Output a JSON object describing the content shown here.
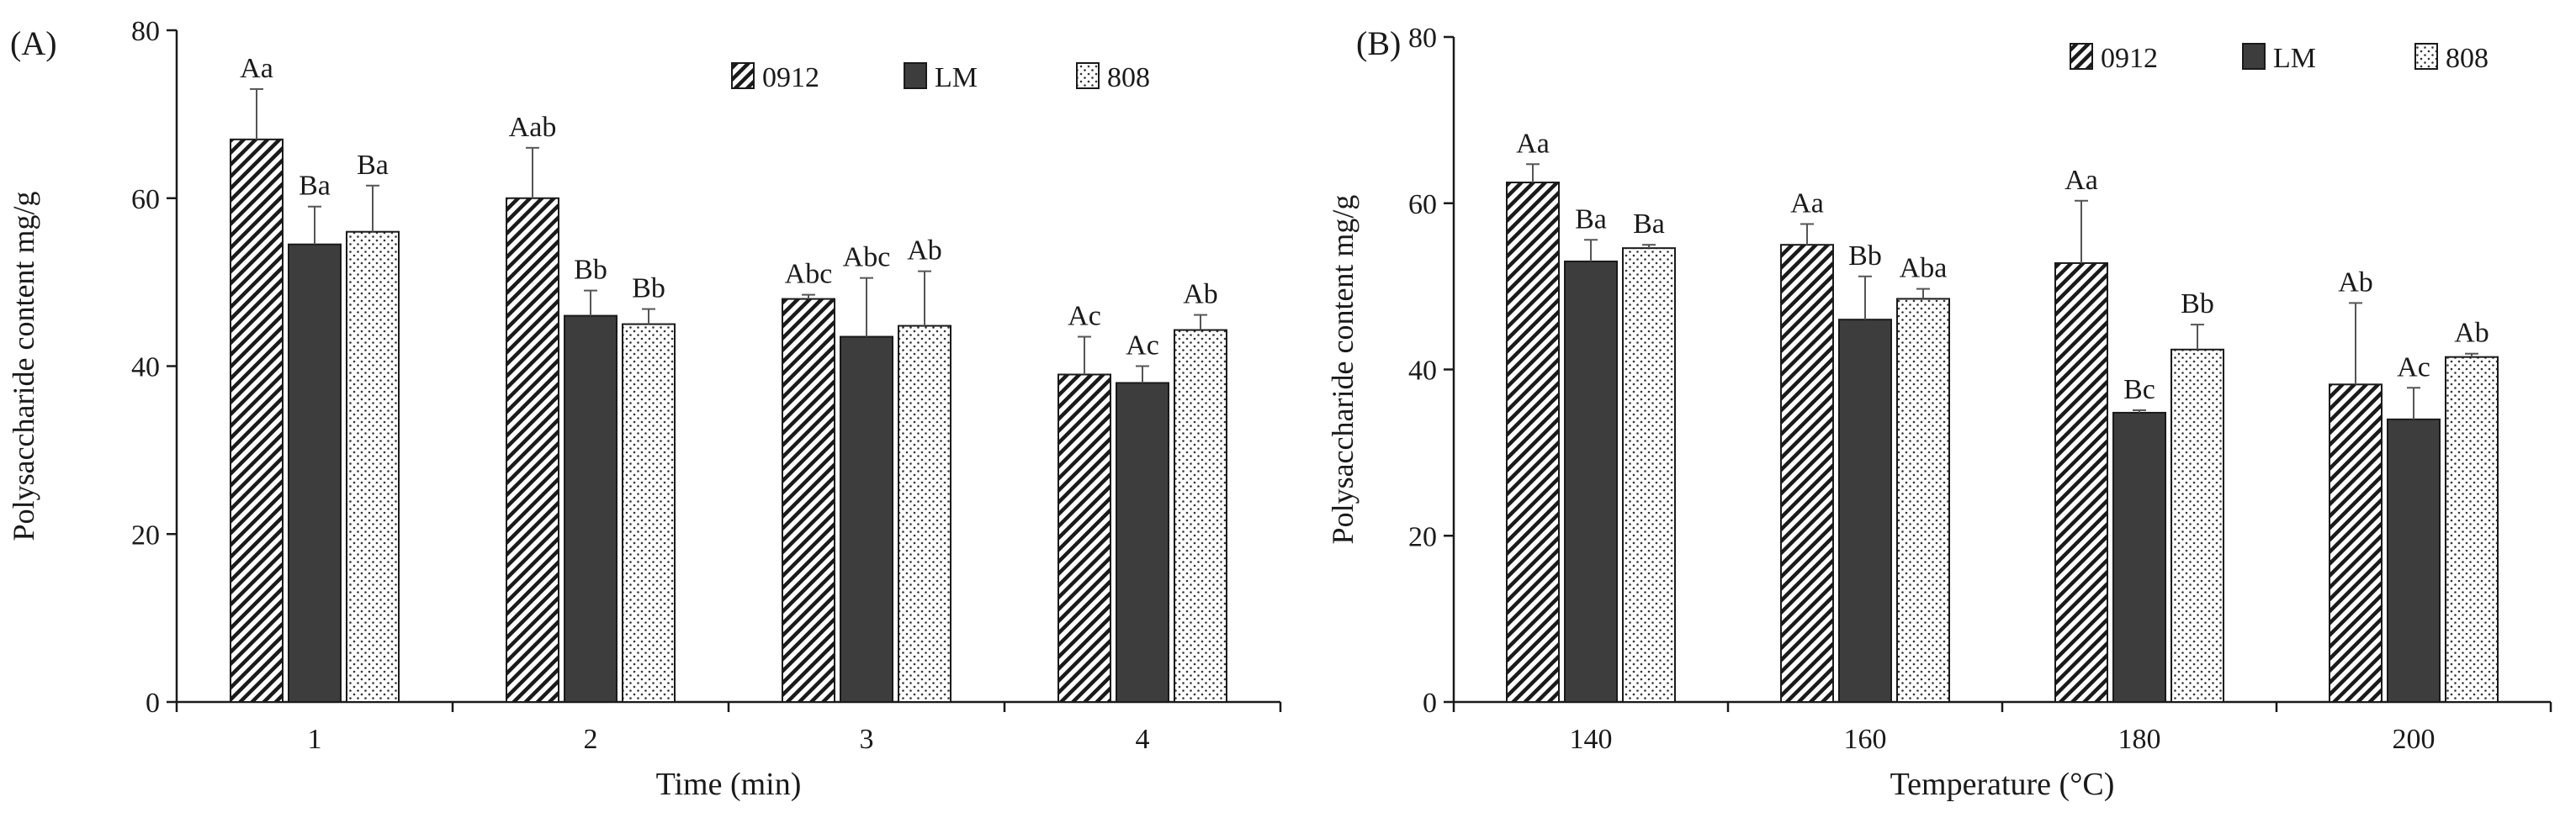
{
  "colors": {
    "axis": "#1a1a1a",
    "lm_fill": "#3d3d3d",
    "hatch": "#1a1a1a",
    "dots": "#333333",
    "background": "#ffffff"
  },
  "legend_icons": [
    "diagonal-hatch-swatch",
    "dark-solid-swatch",
    "dotted-swatch"
  ],
  "chart_data": [
    {
      "type": "bar",
      "panel_label": "(A)",
      "xlabel": "Time (min)",
      "ylabel": "Polysaccharide content mg/g",
      "categories": [
        "1",
        "2",
        "3",
        "4"
      ],
      "ylim": [
        0,
        80
      ],
      "yticks": [
        "0",
        "20",
        "40",
        "60",
        "80"
      ],
      "legend": [
        "0912",
        "LM",
        "808"
      ],
      "legend_position": "top-right",
      "series": [
        {
          "name": "0912",
          "pattern": "hatch",
          "values": [
            67,
            60,
            48,
            39
          ],
          "errors": [
            6,
            6,
            0.5,
            4.5
          ],
          "labels": [
            "Aa",
            "Aab",
            "Abc",
            "Ac"
          ]
        },
        {
          "name": "LM",
          "pattern": "solid",
          "values": [
            54.5,
            46,
            43.5,
            38
          ],
          "errors": [
            4.5,
            3,
            7,
            2
          ],
          "labels": [
            "Ba",
            "Bb",
            "Abc",
            "Ac"
          ]
        },
        {
          "name": "808",
          "pattern": "dots",
          "values": [
            56,
            45,
            44.8,
            44.3
          ],
          "errors": [
            5.5,
            1.8,
            6.5,
            1.8
          ],
          "labels": [
            "Ba",
            "Bb",
            "Ab",
            "Ab"
          ]
        }
      ]
    },
    {
      "type": "bar",
      "panel_label": "(B)",
      "xlabel": "Temperature (°C)",
      "ylabel": "Polysaccharide content mg/g",
      "categories": [
        "140",
        "160",
        "180",
        "200"
      ],
      "ylim": [
        0,
        80
      ],
      "yticks": [
        "0",
        "20",
        "40",
        "60",
        "80"
      ],
      "legend": [
        "0912",
        "LM",
        "808"
      ],
      "legend_position": "top-right",
      "series": [
        {
          "name": "0912",
          "pattern": "hatch",
          "values": [
            62.5,
            55,
            52.8,
            38.2
          ],
          "errors": [
            2.2,
            2.5,
            7.5,
            9.8
          ],
          "labels": [
            "Aa",
            "Aa",
            "Aa",
            "Ab"
          ]
        },
        {
          "name": "LM",
          "pattern": "solid",
          "values": [
            53,
            46,
            34.8,
            34
          ],
          "errors": [
            2.6,
            5.2,
            0.3,
            3.8
          ],
          "labels": [
            "Ba",
            "Bb",
            "Bc",
            "Ac"
          ]
        },
        {
          "name": "808",
          "pattern": "dots",
          "values": [
            54.6,
            48.5,
            42.4,
            41.5
          ],
          "errors": [
            0.4,
            1.2,
            3,
            0.4
          ],
          "labels": [
            "Ba",
            "Aba",
            "Bb",
            "Ab"
          ]
        }
      ]
    }
  ]
}
